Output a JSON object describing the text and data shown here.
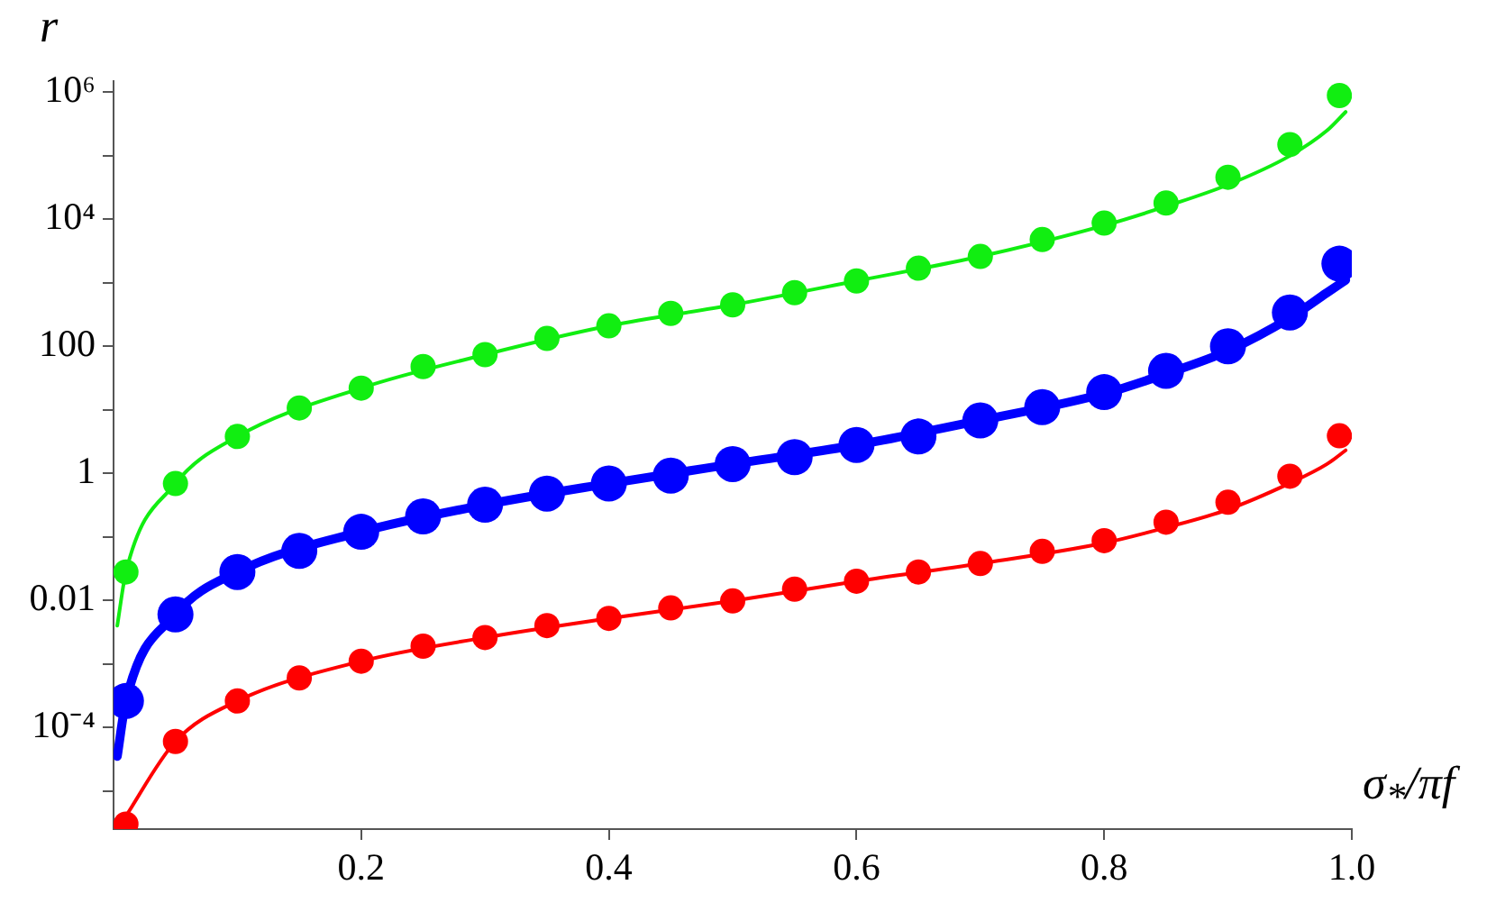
{
  "chart_data": {
    "type": "scatter",
    "xlabel": "σ$_{*}$/πf",
    "ylabel": "r",
    "x": [
      0.01,
      0.05,
      0.1,
      0.15,
      0.2,
      0.25,
      0.3,
      0.35,
      0.4,
      0.45,
      0.5,
      0.55,
      0.6,
      0.65,
      0.7,
      0.75,
      0.8,
      0.85,
      0.9,
      0.95,
      0.99
    ],
    "series": [
      {
        "marker": "circle",
        "color": "#11ee11",
        "values": [
          0.028,
          0.69,
          3.8,
          10.7,
          22,
          48,
          74,
          133,
          210,
          330,
          450,
          700,
          1070,
          1700,
          2600,
          4800,
          8700,
          18000,
          46000,
          150000,
          890000
        ]
      },
      {
        "marker": "circle",
        "color": "#0000ff",
        "values": [
          0.00026,
          0.006,
          0.028,
          0.06,
          0.12,
          0.21,
          0.32,
          0.48,
          0.69,
          0.92,
          1.4,
          1.8,
          2.8,
          3.8,
          6.8,
          11,
          19,
          41,
          100,
          340,
          2000
        ]
      },
      {
        "marker": "circle",
        "color": "#ff0000",
        "values": [
          3e-06,
          6e-05,
          0.00026,
          0.0006,
          0.0011,
          0.0019,
          0.0026,
          0.004,
          0.0052,
          0.0076,
          0.0098,
          0.015,
          0.02,
          0.028,
          0.038,
          0.059,
          0.087,
          0.17,
          0.35,
          0.9,
          3.9
        ]
      },
      {
        "type": "line",
        "marker": "none",
        "color": "#11ee11",
        "x": [
          0.003,
          0.01,
          0.05,
          0.1,
          0.2,
          0.3,
          0.4,
          0.5,
          0.6,
          0.7,
          0.8,
          0.85,
          0.9,
          0.95,
          0.98,
          0.995
        ],
        "values": [
          0.004,
          0.028,
          0.69,
          3.8,
          22,
          74,
          210,
          450,
          1070,
          2600,
          8000,
          16000,
          35000,
          100000,
          250000,
          490000
        ]
      },
      {
        "type": "line",
        "marker": "none",
        "color": "#0000ff",
        "x": [
          0.003,
          0.01,
          0.05,
          0.1,
          0.2,
          0.3,
          0.4,
          0.5,
          0.6,
          0.7,
          0.8,
          0.85,
          0.9,
          0.95,
          0.98,
          0.995
        ],
        "values": [
          3.5e-05,
          0.00026,
          0.006,
          0.028,
          0.12,
          0.32,
          0.69,
          1.4,
          2.8,
          6.8,
          18,
          37,
          85,
          280,
          700,
          1100
        ]
      },
      {
        "type": "line",
        "marker": "none",
        "color": "#ff0000",
        "x": [
          0.004,
          0.01,
          0.05,
          0.1,
          0.2,
          0.3,
          0.4,
          0.5,
          0.6,
          0.7,
          0.8,
          0.85,
          0.9,
          0.95,
          0.98,
          0.995
        ],
        "values": [
          2.6e-06,
          4e-06,
          6e-05,
          0.00026,
          0.0011,
          0.0026,
          0.0052,
          0.0098,
          0.02,
          0.038,
          0.08,
          0.14,
          0.27,
          0.7,
          1.4,
          2.3
        ]
      }
    ],
    "xlim": [
      0,
      1.0
    ],
    "ylim": [
      2.5e-06,
      1500000
    ],
    "xticks": [
      {
        "value": 0.2,
        "label": "0.2"
      },
      {
        "value": 0.4,
        "label": "0.4"
      },
      {
        "value": 0.6,
        "label": "0.6"
      },
      {
        "value": 0.8,
        "label": "0.8"
      },
      {
        "value": 1.0,
        "label": "1.0"
      }
    ],
    "yticks": [
      {
        "value": 1e-05,
        "label": null
      },
      {
        "value": 0.0001,
        "label": "10⁻⁴"
      },
      {
        "value": 0.001,
        "label": null
      },
      {
        "value": 0.01,
        "label": "0.01"
      },
      {
        "value": 0.1,
        "label": null
      },
      {
        "value": 1,
        "label": "1"
      },
      {
        "value": 10,
        "label": null
      },
      {
        "value": 100,
        "label": "100"
      },
      {
        "value": 1000,
        "label": null
      },
      {
        "value": 10000,
        "label": "10⁴"
      },
      {
        "value": 100000,
        "label": null
      },
      {
        "value": 1000000,
        "label": "10⁶"
      }
    ],
    "log": "y",
    "grid": false,
    "legend": false
  }
}
